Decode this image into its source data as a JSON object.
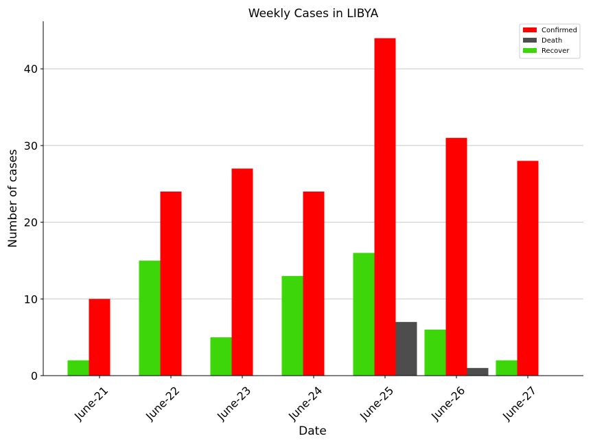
{
  "chart_data": {
    "type": "bar",
    "title": "Weekly Cases in LIBYA",
    "xlabel": "Date",
    "ylabel": "Number of cases",
    "categories": [
      "June-21",
      "June-22",
      "June-23",
      "June-24",
      "June-25",
      "June-26",
      "June-27"
    ],
    "series": [
      {
        "name": "Recover",
        "color": "#3cd60a",
        "values": [
          2,
          15,
          5,
          13,
          16,
          6,
          2
        ]
      },
      {
        "name": "Confirmed",
        "color": "#ff0000",
        "values": [
          10,
          24,
          27,
          24,
          44,
          31,
          28
        ]
      },
      {
        "name": "Death",
        "color": "#4d4d4d",
        "values": [
          0,
          0,
          0,
          0,
          7,
          1,
          0
        ]
      }
    ],
    "legend_order": [
      "Confirmed",
      "Death",
      "Recover"
    ],
    "yticks": [
      0,
      10,
      20,
      30,
      40
    ],
    "ylim": [
      0,
      46.2
    ],
    "grid": "horizontal",
    "legend_position": "top-right"
  }
}
